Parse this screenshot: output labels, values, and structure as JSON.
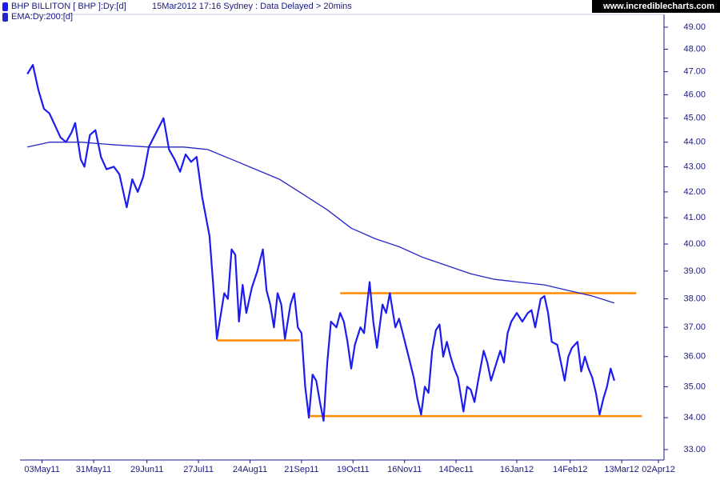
{
  "chart_data": {
    "type": "line",
    "title": "15Mar2012 17:16 Sydney : Data Delayed > 20mins",
    "watermark": "www.incrediblecharts.com",
    "log_y": true,
    "ylim": [
      32.68,
      49.59
    ],
    "yticks": [
      {
        "value": 33,
        "label": "33.00"
      },
      {
        "value": 34,
        "label": "34.00"
      },
      {
        "value": 35,
        "label": "35.00"
      },
      {
        "value": 36,
        "label": "36.00"
      },
      {
        "value": 37,
        "label": "37.00"
      },
      {
        "value": 38,
        "label": "38.00"
      },
      {
        "value": 39,
        "label": "39.00"
      },
      {
        "value": 40,
        "label": "40.00"
      },
      {
        "value": 41,
        "label": "41.00"
      },
      {
        "value": 42,
        "label": "42.00"
      },
      {
        "value": 43,
        "label": "43.00"
      },
      {
        "value": 44,
        "label": "44.00"
      },
      {
        "value": 45,
        "label": "45.00"
      },
      {
        "value": 46,
        "label": "46.00"
      },
      {
        "value": 47,
        "label": "47.00"
      },
      {
        "value": 48,
        "label": "48.00"
      },
      {
        "value": 49,
        "label": "49.00"
      }
    ],
    "xlim": [
      "2011-04-21",
      "2012-04-05"
    ],
    "xticks": [
      {
        "value": "2011-05-03",
        "label": "03May11"
      },
      {
        "value": "2011-05-31",
        "label": "31May11"
      },
      {
        "value": "2011-06-29",
        "label": "29Jun11"
      },
      {
        "value": "2011-07-27",
        "label": "27Jul11"
      },
      {
        "value": "2011-08-24",
        "label": "24Aug11"
      },
      {
        "value": "2011-09-21",
        "label": "21Sep11"
      },
      {
        "value": "2011-10-19",
        "label": "19Oct11"
      },
      {
        "value": "2011-11-16",
        "label": "16Nov11"
      },
      {
        "value": "2011-12-14",
        "label": "14Dec11"
      },
      {
        "value": "2012-01-16",
        "label": "16Jan12"
      },
      {
        "value": "2012-02-14",
        "label": "14Feb12"
      },
      {
        "value": "2012-03-13",
        "label": "13Mar12"
      },
      {
        "value": "2012-04-02",
        "label": "02Apr12"
      }
    ],
    "series": [
      {
        "name": "BHP BILLITON [ BHP ]:Dy:[d]",
        "color": "#1c1cf0",
        "width": 2.2,
        "x": [
          "2011-04-25",
          "2011-04-28",
          "2011-05-01",
          "2011-05-04",
          "2011-05-07",
          "2011-05-10",
          "2011-05-13",
          "2011-05-16",
          "2011-05-19",
          "2011-05-21",
          "2011-05-24",
          "2011-05-26",
          "2011-05-29",
          "2011-06-01",
          "2011-06-04",
          "2011-06-07",
          "2011-06-11",
          "2011-06-14",
          "2011-06-18",
          "2011-06-21",
          "2011-06-24",
          "2011-06-27",
          "2011-06-30",
          "2011-07-04",
          "2011-07-08",
          "2011-07-11",
          "2011-07-14",
          "2011-07-17",
          "2011-07-20",
          "2011-07-23",
          "2011-07-26",
          "2011-07-29",
          "2011-08-02",
          "2011-08-04",
          "2011-08-06",
          "2011-08-08",
          "2011-08-10",
          "2011-08-12",
          "2011-08-14",
          "2011-08-16",
          "2011-08-18",
          "2011-08-20",
          "2011-08-22",
          "2011-08-25",
          "2011-08-28",
          "2011-08-31",
          "2011-09-02",
          "2011-09-04",
          "2011-09-06",
          "2011-09-08",
          "2011-09-10",
          "2011-09-12",
          "2011-09-15",
          "2011-09-17",
          "2011-09-19",
          "2011-09-21",
          "2011-09-23",
          "2011-09-25",
          "2011-09-27",
          "2011-09-29",
          "2011-10-01",
          "2011-10-03",
          "2011-10-05",
          "2011-10-07",
          "2011-10-10",
          "2011-10-12",
          "2011-10-14",
          "2011-10-16",
          "2011-10-18",
          "2011-10-20",
          "2011-10-23",
          "2011-10-25",
          "2011-10-27",
          "2011-10-28",
          "2011-10-30",
          "2011-11-01",
          "2011-11-04",
          "2011-11-06",
          "2011-11-08",
          "2011-11-11",
          "2011-11-13",
          "2011-11-15",
          "2011-11-17",
          "2011-11-19",
          "2011-11-21",
          "2011-11-23",
          "2011-11-25",
          "2011-11-27",
          "2011-11-29",
          "2011-12-01",
          "2011-12-03",
          "2011-12-05",
          "2011-12-07",
          "2011-12-09",
          "2011-12-11",
          "2011-12-13",
          "2011-12-15",
          "2011-12-18",
          "2011-12-20",
          "2011-12-22",
          "2011-12-24",
          "2011-12-26",
          "2011-12-29",
          "2011-12-31",
          "2012-01-02",
          "2012-01-05",
          "2012-01-07",
          "2012-01-09",
          "2012-01-11",
          "2012-01-13",
          "2012-01-16",
          "2012-01-19",
          "2012-01-22",
          "2012-01-24",
          "2012-01-26",
          "2012-01-29",
          "2012-01-31",
          "2012-02-02",
          "2012-02-04",
          "2012-02-07",
          "2012-02-09",
          "2012-02-11",
          "2012-02-13",
          "2012-02-15",
          "2012-02-18",
          "2012-02-20",
          "2012-02-22",
          "2012-02-24",
          "2012-02-26",
          "2012-02-28",
          "2012-03-01",
          "2012-03-03",
          "2012-03-05",
          "2012-03-07",
          "2012-03-09"
        ],
        "values": [
          46.9,
          47.3,
          46.2,
          45.4,
          45.2,
          44.7,
          44.2,
          44.0,
          44.4,
          44.8,
          43.3,
          43.0,
          44.3,
          44.5,
          43.4,
          42.9,
          43.0,
          42.7,
          41.4,
          42.5,
          42.0,
          42.6,
          43.8,
          44.4,
          45.0,
          43.7,
          43.3,
          42.8,
          43.5,
          43.2,
          43.4,
          41.8,
          40.3,
          38.5,
          36.6,
          37.4,
          38.2,
          38.0,
          39.8,
          39.6,
          37.2,
          38.5,
          37.5,
          38.4,
          39.0,
          39.8,
          38.3,
          37.8,
          37.0,
          38.2,
          37.8,
          36.6,
          37.8,
          38.2,
          37.0,
          36.8,
          35.0,
          34.0,
          35.4,
          35.2,
          34.5,
          33.9,
          35.8,
          37.2,
          37.0,
          37.5,
          37.2,
          36.5,
          35.6,
          36.4,
          37.0,
          36.8,
          38.0,
          38.6,
          37.2,
          36.3,
          37.8,
          37.5,
          38.2,
          37.0,
          37.3,
          36.8,
          36.3,
          35.8,
          35.3,
          34.6,
          34.1,
          35.0,
          34.8,
          36.2,
          36.9,
          37.1,
          36.0,
          36.5,
          36.0,
          35.6,
          35.3,
          34.2,
          35.0,
          34.9,
          34.5,
          35.2,
          36.2,
          35.8,
          35.2,
          35.8,
          36.2,
          35.8,
          36.8,
          37.2,
          37.5,
          37.2,
          37.5,
          37.6,
          37.0,
          38.0,
          38.1,
          37.5,
          36.5,
          36.4,
          35.8,
          35.2,
          36.0,
          36.3,
          36.5,
          35.5,
          36.0,
          35.6,
          35.3,
          34.8,
          34.1,
          34.6,
          35.0,
          35.6,
          35.2
        ]
      },
      {
        "name": "EMA:Dy:200:[d]",
        "color": "#2626c8",
        "width": 1.3,
        "x": [
          "2011-04-25",
          "2011-05-07",
          "2011-05-24",
          "2011-06-10",
          "2011-06-30",
          "2011-07-19",
          "2011-08-01",
          "2011-08-14",
          "2011-08-27",
          "2011-09-09",
          "2011-09-22",
          "2011-10-05",
          "2011-10-18",
          "2011-10-31",
          "2011-11-13",
          "2011-11-26",
          "2011-12-09",
          "2011-12-22",
          "2012-01-04",
          "2012-01-17",
          "2012-01-31",
          "2012-02-13",
          "2012-02-26",
          "2012-03-09"
        ],
        "values": [
          43.8,
          44.0,
          44.0,
          43.9,
          43.8,
          43.8,
          43.7,
          43.3,
          42.9,
          42.5,
          41.9,
          41.3,
          40.6,
          40.2,
          39.9,
          39.5,
          39.2,
          38.9,
          38.7,
          38.6,
          38.5,
          38.3,
          38.1,
          37.85
        ]
      }
    ],
    "levels": [
      {
        "value": 36.55,
        "x": [
          "2011-08-06",
          "2011-09-20"
        ],
        "color": "#ff8c00"
      },
      {
        "value": 34.05,
        "x": [
          "2011-09-25",
          "2012-03-24"
        ],
        "color": "#ff8c00"
      },
      {
        "value": 38.2,
        "x": [
          "2011-10-12",
          "2012-03-21"
        ],
        "color": "#ff8c00"
      }
    ]
  }
}
